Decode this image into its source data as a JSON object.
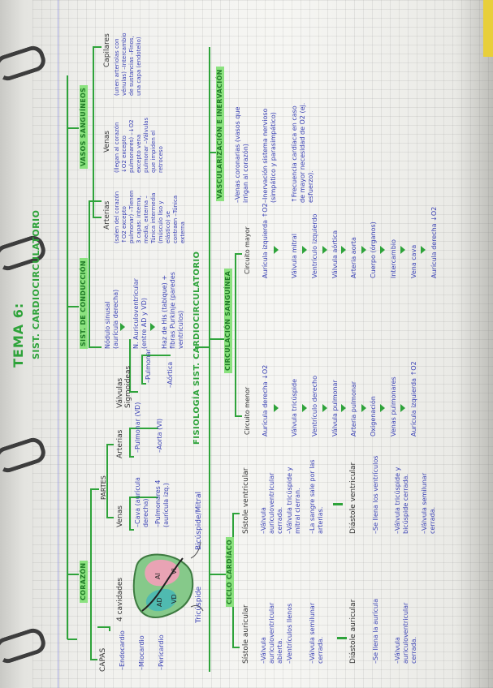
{
  "colors": {
    "line": "#2ea33a",
    "highlight": "#8be27f",
    "ink_blue": "#3c43b5",
    "ink_dark": "#333333",
    "heart_left": "#e9a3b4",
    "heart_right": "#4fbab0"
  },
  "header": {
    "title": "TEMA 6:",
    "subtitle": "SIST. CARDIOCIRCULATORIO"
  },
  "corazon": {
    "label": "CORAZÓN",
    "capas": {
      "label": "CAPAS",
      "items": [
        "–Endocardio",
        "–Miocardio",
        "–Pericardio"
      ]
    },
    "cavidades": "4 cavidades",
    "heart_labels": [
      "AI",
      "VI",
      "AD",
      "VD"
    ],
    "tricuspide": "Tricúspide",
    "bicuspide": "Bicúspide/Mitral",
    "partes": {
      "label": "PARTES",
      "venas": {
        "label": "Venas",
        "items": [
          "–Cava (aurícula derecha)",
          "–Pulmonares 4 (aurícula izq.)"
        ]
      },
      "arterias": {
        "label": "Arterias",
        "items": [
          "–Pulmonar (VD)",
          "–Aorta (VI)"
        ]
      }
    },
    "valvulas": {
      "label": "Válvulas Sigmoideas",
      "items": [
        "–Pulmonar",
        "–Aórtica"
      ]
    }
  },
  "conduccion": {
    "label": "SIST. DE CONDUCCIÓN",
    "items": [
      "Nódulo sinusal (aurícula derecha)",
      "N. Auriculoventricular (entre AD y VD)",
      "Haz de His (tabique) + fibras Purkinje (paredes ventrículos)"
    ]
  },
  "vasos": {
    "label": "VASOS SANGUÍNEOS",
    "arterias": {
      "label": "Arterias",
      "text": "(salen del corazón ↑O2 excepto pulmonar) –Tienen 3 capas: interna, media, externa –Túnica intermedia (músculo liso y elástico) se contraen –Túnica externa"
    },
    "venas": {
      "label": "Venas",
      "text": "(llegan al corazón ↓O2 excepto pulmonares) –↓O2 excepto vena pulmonar –Válvulas que impiden el retroceso"
    },
    "capilares": {
      "label": "Capilares",
      "text": "(unen arteriolas con vénulas) –Intercambio de sustancias –Finos, una capa (endotelio)"
    }
  },
  "fisiologia": {
    "label": "FISIOLOGÍA SIST. CARDIOCIRCULATORIO",
    "ciclo": {
      "label": "CICLO CARDÍACO",
      "sistole_auricular": {
        "label": "Sístole auricular",
        "items": [
          "–Válvula auriculoventricular abierta.",
          "–Ventrículos llenos",
          "–Válvula semilunar cerrada."
        ]
      },
      "diastole_auricular": {
        "label": "Diástole auricular",
        "items": [
          "–Se llena la aurícula",
          "–Válvula auriculoventricular cerrada."
        ]
      },
      "sistole_ventricular": {
        "label": "Sístole ventricular",
        "items": [
          "–Válvula auriculoventricular cerrada.",
          "–Válvula tricúspide y mitral cierran.",
          "–La sangre sale por las arterias."
        ]
      },
      "diastole_ventricular": {
        "label": "Diástole ventricular",
        "items": [
          "–Se llena los ventrículos",
          "–Válvula tricúspide y bicúspide cerrada.",
          "–Válvula semilunar cerrada."
        ]
      }
    },
    "circulacion": {
      "label": "CIRCULACIÓN SANGUÍNEA",
      "menor": {
        "label": "Circuito menor",
        "items": [
          "Aurícula derecha ↓O2",
          "Válvula tricúspide",
          "Ventrículo derecho",
          "Válvula pulmonar",
          "Arteria pulmonar",
          "Oxigenación",
          "Venas pulmonares",
          "Aurícula izquierda ↑O2"
        ]
      },
      "mayor": {
        "label": "Circuito mayor",
        "items": [
          "Aurícula izquierda ↑O2",
          "Válvula mitral",
          "Ventrículo izquierdo",
          "Válvula aórtica",
          "Arteria aorta",
          "Cuerpo (órganos)",
          "Intercambio",
          "Vena cava",
          "Aurícula derecha ↓O2"
        ]
      }
    },
    "vascularizacion": {
      "label": "VASCULARIZACIÓN E INERVACIÓN",
      "items": [
        "–Venas coronarias (vasos que irrigan al corazón)",
        "–Inervación sistema nervioso (simpático y parasimpático)",
        "↑Frecuencia cardíaca en caso de mayor necesidad de O2 (ej. esfuerzo)."
      ]
    }
  }
}
